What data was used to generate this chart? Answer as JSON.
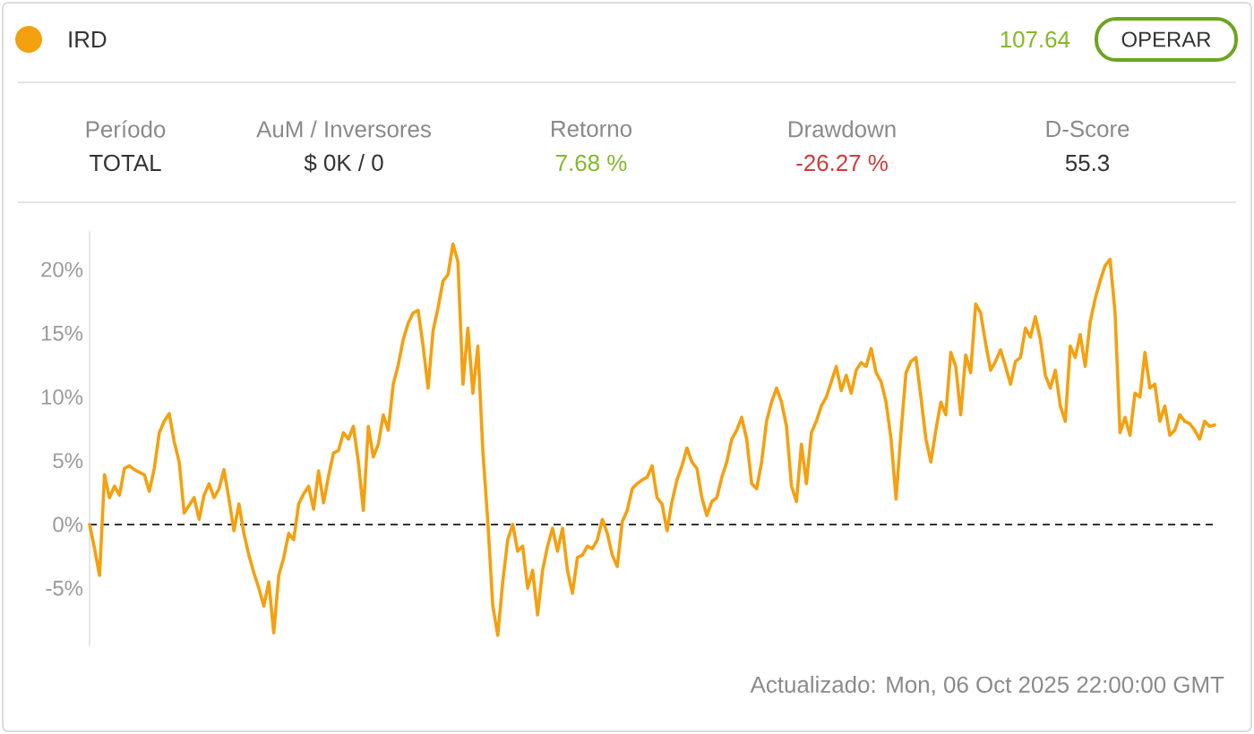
{
  "chart_data": {
    "type": "line",
    "categories": [
      null,
      null,
      null,
      null,
      null,
      null,
      null,
      null,
      null,
      null,
      null,
      null,
      null,
      null,
      null,
      null,
      null,
      null,
      null,
      null,
      null,
      null,
      null,
      null,
      null,
      null,
      null,
      null,
      null,
      null,
      null,
      null,
      null,
      null,
      null,
      null,
      null,
      null,
      null,
      null,
      null,
      null,
      null,
      null,
      null,
      null,
      null,
      null,
      null,
      null,
      null,
      null,
      null,
      null,
      null,
      null,
      null,
      null,
      null,
      null,
      null,
      null,
      null,
      null,
      null,
      null,
      null,
      null,
      null,
      null,
      null,
      null,
      null,
      null,
      null,
      null,
      null,
      null,
      null,
      null,
      null,
      null,
      null,
      null,
      null,
      null,
      null,
      null,
      null,
      null,
      null,
      null,
      null,
      null,
      null,
      null,
      null,
      null,
      null,
      null,
      null,
      null,
      null,
      null,
      null,
      null,
      null,
      null,
      null,
      null,
      null,
      null,
      null,
      null,
      null,
      null,
      null,
      null,
      null,
      null,
      null,
      null,
      null,
      null,
      null,
      null,
      null,
      null,
      null,
      null,
      null,
      null,
      null,
      null,
      null,
      null,
      null,
      null,
      null,
      null,
      null,
      null,
      null,
      null,
      null,
      null,
      null,
      null,
      null,
      null,
      null,
      null,
      null,
      null,
      null,
      null,
      null,
      null,
      null,
      null,
      null,
      null,
      null,
      null,
      null,
      null,
      null,
      null,
      null,
      null,
      null,
      null,
      null,
      null,
      null,
      null,
      null,
      null,
      null,
      null,
      null,
      null,
      null,
      null,
      null,
      null,
      null,
      null,
      null,
      null,
      null,
      null,
      null,
      null,
      null,
      null,
      null,
      null,
      null,
      null,
      null,
      null,
      null,
      null,
      null,
      null,
      null,
      null,
      null,
      null,
      null,
      null,
      null,
      null,
      null,
      null,
      null,
      null,
      null,
      null,
      null,
      null,
      null,
      null,
      null,
      null,
      null
    ],
    "series": [
      {
        "name": "IRD",
        "color": "#f5a00f",
        "values": [
          0,
          -1.9,
          -4.0,
          3.9,
          2.1,
          3.0,
          2.3,
          4.4,
          4.6,
          4.3,
          4.1,
          3.9,
          2.6,
          4.4,
          7.2,
          8.1,
          8.7,
          6.5,
          4.9,
          0.9,
          1.5,
          2.1,
          0.4,
          2.3,
          3.2,
          2.1,
          2.8,
          4.3,
          2.0,
          -0.5,
          1.6,
          -0.7,
          -2.4,
          -3.8,
          -5.0,
          -6.4,
          -4.5,
          -8.5,
          -4.0,
          -2.6,
          -0.7,
          -1.2,
          1.6,
          2.4,
          3.0,
          1.2,
          4.2,
          1.7,
          3.8,
          5.6,
          5.8,
          7.2,
          6.7,
          7.7,
          4.9,
          1.1,
          7.7,
          5.3,
          6.3,
          8.6,
          7.4,
          11.0,
          12.5,
          14.5,
          15.8,
          16.6,
          16.8,
          14.0,
          10.7,
          15.2,
          17.0,
          19.1,
          19.6,
          22.0,
          20.6,
          11.0,
          15.4,
          10.3,
          14.0,
          5.8,
          0.2,
          -6.4,
          -8.7,
          -4.5,
          -1.2,
          0,
          -2.1,
          -1.7,
          -5.0,
          -3.6,
          -7.1,
          -3.6,
          -1.7,
          -0.3,
          -2.1,
          -0.3,
          -3.6,
          -5.4,
          -2.6,
          -2.4,
          -1.7,
          -1.9,
          -1.2,
          0.4,
          -0.7,
          -2.4,
          -3.3,
          0.2,
          1.1,
          2.8,
          3.2,
          3.5,
          3.7,
          4.6,
          2.1,
          1.6,
          -0.5,
          1.8,
          3.5,
          4.6,
          6.0,
          4.9,
          4.4,
          2.1,
          0.7,
          1.8,
          2.1,
          3.7,
          4.9,
          6.7,
          7.4,
          8.4,
          6.7,
          3.2,
          2.8,
          4.9,
          8.1,
          9.6,
          10.7,
          9.6,
          7.7,
          3.0,
          1.8,
          6.3,
          3.2,
          7.2,
          8.1,
          9.3,
          10.0,
          11.2,
          12.4,
          10.5,
          11.7,
          10.3,
          12.1,
          12.7,
          12.4,
          13.8,
          11.9,
          11.2,
          9.6,
          6.7,
          2.0,
          7.2,
          11.9,
          12.8,
          13.1,
          10.0,
          6.7,
          4.9,
          7.4,
          9.6,
          8.6,
          13.5,
          12.4,
          8.6,
          13.3,
          11.9,
          17.3,
          16.6,
          14.2,
          12.1,
          12.8,
          13.7,
          12.4,
          11.0,
          12.8,
          13.1,
          15.4,
          14.7,
          16.3,
          14.5,
          11.7,
          10.7,
          12.1,
          9.3,
          8.1,
          14.0,
          13.1,
          14.9,
          12.4,
          15.9,
          17.7,
          19.1,
          20.3,
          20.8,
          16.6,
          7.2,
          8.4,
          7.0,
          10.3,
          10.0,
          13.5,
          10.7,
          11.0,
          8.1,
          9.3,
          7.0,
          7.4,
          8.6,
          8.1,
          7.9,
          7.4,
          6.7,
          8.1,
          7.7,
          7.8
        ]
      }
    ],
    "ylim": [
      -9.5,
      23
    ],
    "yticks": [
      {
        "value": -5,
        "label": "-5%"
      },
      {
        "value": 0,
        "label": "0%"
      },
      {
        "value": 5,
        "label": "5%"
      },
      {
        "value": 10,
        "label": "10%"
      },
      {
        "value": 15,
        "label": "15%"
      },
      {
        "value": 20,
        "label": "20%"
      }
    ],
    "tick_labels": "y",
    "legend": "top left",
    "ref_lines": [
      {
        "axis": "y",
        "value": 0,
        "color": "#333333",
        "line_style": "dashed"
      }
    ],
    "annotations": [
      "107.64",
      "OPERAR",
      "Período",
      "TOTAL",
      "AuM / Inversores",
      "$ 0K / 0",
      "Retorno",
      "7.68 %",
      "Drawdown",
      "-26.27 %",
      "D-Score",
      "55.3",
      "Actualizado: Mon, 06 Oct 2025 22:00:00 GMT"
    ]
  }
}
